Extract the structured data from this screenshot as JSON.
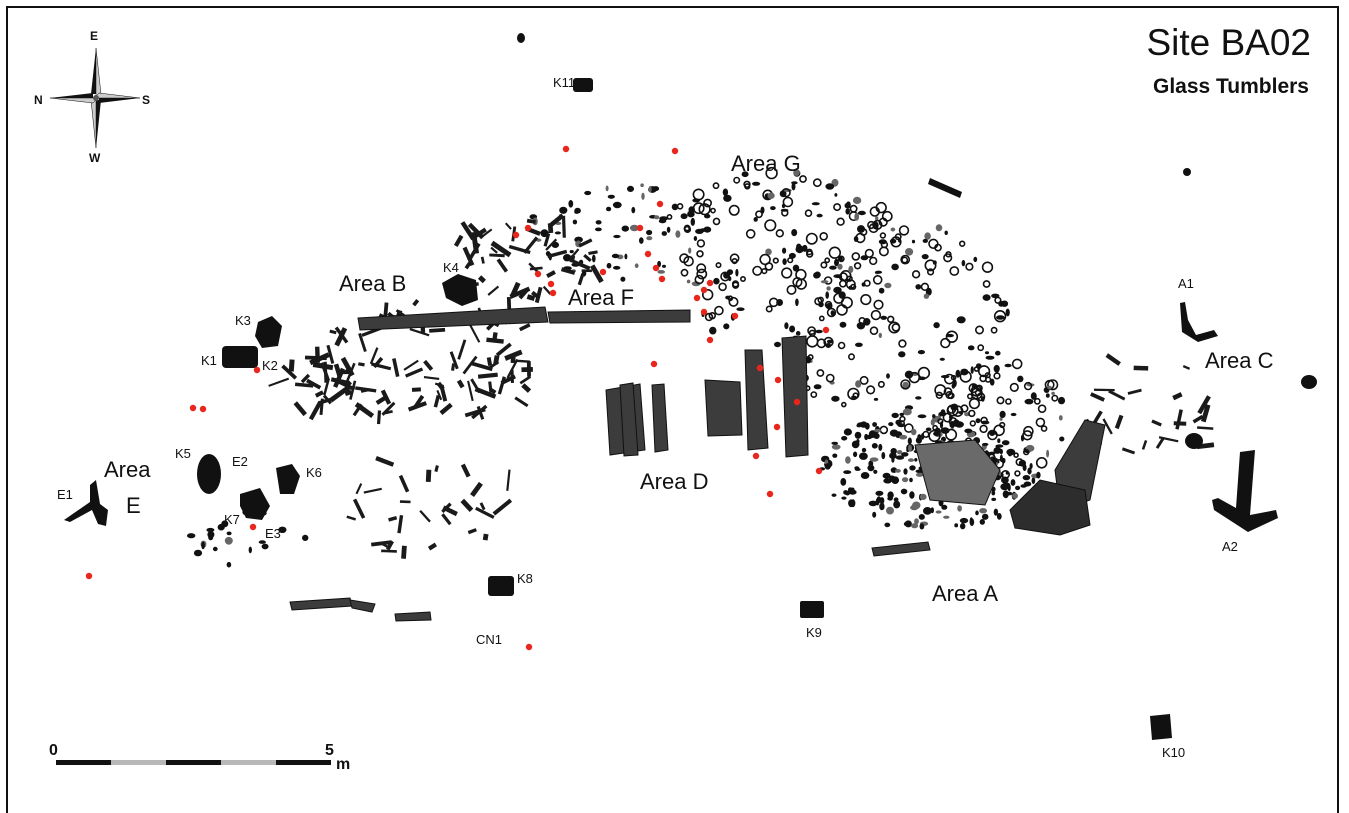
{
  "title": "Site BA02",
  "subtitle": "Glass Tumblers",
  "compass": {
    "top": "E",
    "left": "N",
    "right": "S",
    "bottom": "W"
  },
  "scale": {
    "start": "0",
    "end": "5",
    "unit": "m"
  },
  "areas": {
    "a": "Area A",
    "b": "Area B",
    "c": "Area C",
    "d": "Area D",
    "e1": "Area",
    "e2": "E",
    "f": "Area F",
    "g": "Area G"
  },
  "features": {
    "k1": "K1",
    "k2": "K2",
    "k3": "K3",
    "k4": "K4",
    "k5": "K5",
    "k6": "K6",
    "k7": "K7",
    "k8": "K8",
    "k9": "K9",
    "k10": "K10",
    "k11": "K11",
    "e1": "E1",
    "e2": "E2",
    "e3": "E3",
    "a1": "A1",
    "a2": "A2",
    "cn1": "CN1"
  },
  "colors": {
    "find_marker": "#e8261c",
    "feature": "#111111",
    "timber": "#4a4a4a",
    "scale_light": "#b8b8b8"
  }
}
